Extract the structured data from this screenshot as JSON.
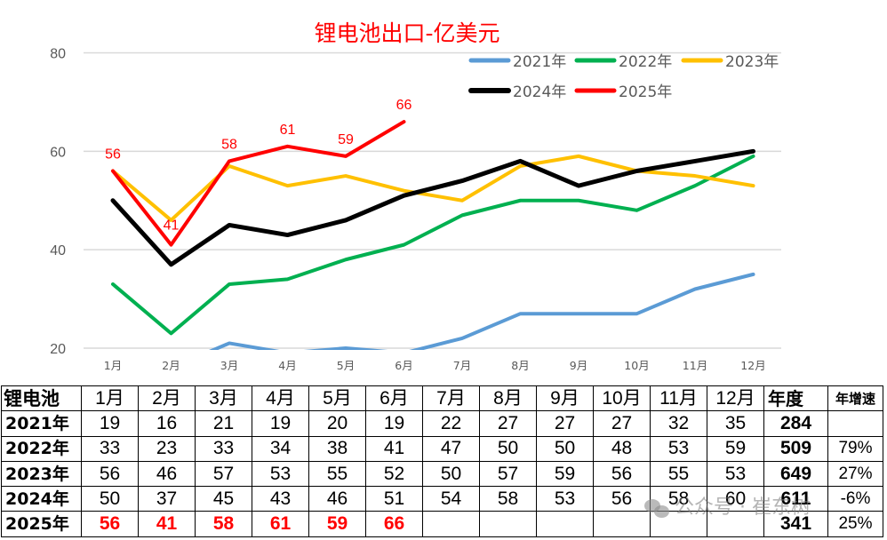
{
  "chart_data": {
    "type": "line",
    "title": "锂电池出口-亿美元",
    "xlabel": "",
    "ylabel": "",
    "categories": [
      "1月",
      "2月",
      "3月",
      "4月",
      "5月",
      "6月",
      "7月",
      "8月",
      "9月",
      "10月",
      "11月",
      "12月"
    ],
    "ylim": [
      20,
      80
    ],
    "yticks": [
      20,
      40,
      60,
      80
    ],
    "grid": true,
    "legend_position": "top-right",
    "series": [
      {
        "name": "2021年",
        "color": "#5b9bd5",
        "values": [
          19,
          16,
          21,
          19,
          20,
          19,
          22,
          27,
          27,
          27,
          32,
          35
        ]
      },
      {
        "name": "2022年",
        "color": "#00b050",
        "values": [
          33,
          23,
          33,
          34,
          38,
          41,
          47,
          50,
          50,
          48,
          53,
          59
        ]
      },
      {
        "name": "2023年",
        "color": "#ffc000",
        "values": [
          56,
          46,
          57,
          53,
          55,
          52,
          50,
          57,
          59,
          56,
          55,
          53
        ]
      },
      {
        "name": "2024年",
        "color": "#000000",
        "values": [
          50,
          37,
          45,
          43,
          46,
          51,
          54,
          58,
          53,
          56,
          58,
          60
        ]
      },
      {
        "name": "2025年",
        "color": "#ff0000",
        "values": [
          56,
          41,
          58,
          61,
          59,
          66
        ],
        "data_labels": true
      }
    ]
  },
  "table": {
    "corner": "锂电池",
    "headers": [
      "1月",
      "2月",
      "3月",
      "4月",
      "5月",
      "6月",
      "7月",
      "8月",
      "9月",
      "10月",
      "11月",
      "12月"
    ],
    "total_header": "年度",
    "growth_header": "年增速",
    "rows": [
      {
        "label": "2021年",
        "values": [
          "19",
          "16",
          "21",
          "19",
          "20",
          "19",
          "22",
          "27",
          "27",
          "27",
          "32",
          "35"
        ],
        "total": "284",
        "growth": ""
      },
      {
        "label": "2022年",
        "values": [
          "33",
          "23",
          "33",
          "34",
          "38",
          "41",
          "47",
          "50",
          "50",
          "48",
          "53",
          "59"
        ],
        "total": "509",
        "growth": "79%"
      },
      {
        "label": "2023年",
        "values": [
          "56",
          "46",
          "57",
          "53",
          "55",
          "52",
          "50",
          "57",
          "59",
          "56",
          "55",
          "53"
        ],
        "total": "649",
        "growth": "27%"
      },
      {
        "label": "2024年",
        "values": [
          "50",
          "37",
          "45",
          "43",
          "46",
          "51",
          "54",
          "58",
          "53",
          "56",
          "58",
          "60"
        ],
        "total": "611",
        "growth": "-6%"
      },
      {
        "label": "2025年",
        "values": [
          "56",
          "41",
          "58",
          "61",
          "59",
          "66",
          "",
          "",
          "",
          "",
          "",
          ""
        ],
        "total": "341",
        "growth": "25%"
      }
    ]
  },
  "watermark": "公众号 · 崔东树",
  "colors": {
    "title": "#ff0000",
    "highlight": "#ff0000",
    "grid": "#d9d9d9",
    "axis_text": "#595959"
  }
}
